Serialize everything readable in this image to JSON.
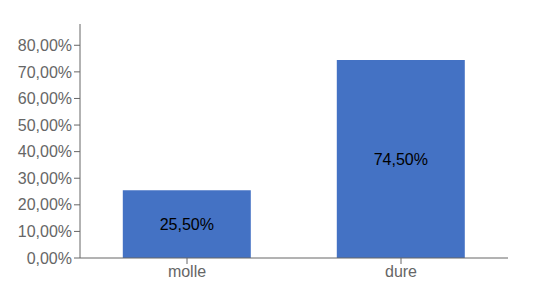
{
  "chart_data": {
    "type": "bar",
    "categories": [
      "molle",
      "dure"
    ],
    "values": [
      0.255,
      0.745
    ],
    "value_labels": [
      "25,50%",
      "74,50%"
    ],
    "data_labels": true,
    "color": "#4472C4",
    "ylim": [
      0,
      0.88
    ],
    "yticks": [
      {
        "value": 0.0,
        "label": "0,00%"
      },
      {
        "value": 0.1,
        "label": "10,00%"
      },
      {
        "value": 0.2,
        "label": "20,00%"
      },
      {
        "value": 0.3,
        "label": "30,00%"
      },
      {
        "value": 0.4,
        "label": "40,00%"
      },
      {
        "value": 0.5,
        "label": "50,00%"
      },
      {
        "value": 0.6,
        "label": "60,00%"
      },
      {
        "value": 0.7,
        "label": "70,00%"
      },
      {
        "value": 0.8,
        "label": "80,00%"
      }
    ],
    "grid": false
  }
}
